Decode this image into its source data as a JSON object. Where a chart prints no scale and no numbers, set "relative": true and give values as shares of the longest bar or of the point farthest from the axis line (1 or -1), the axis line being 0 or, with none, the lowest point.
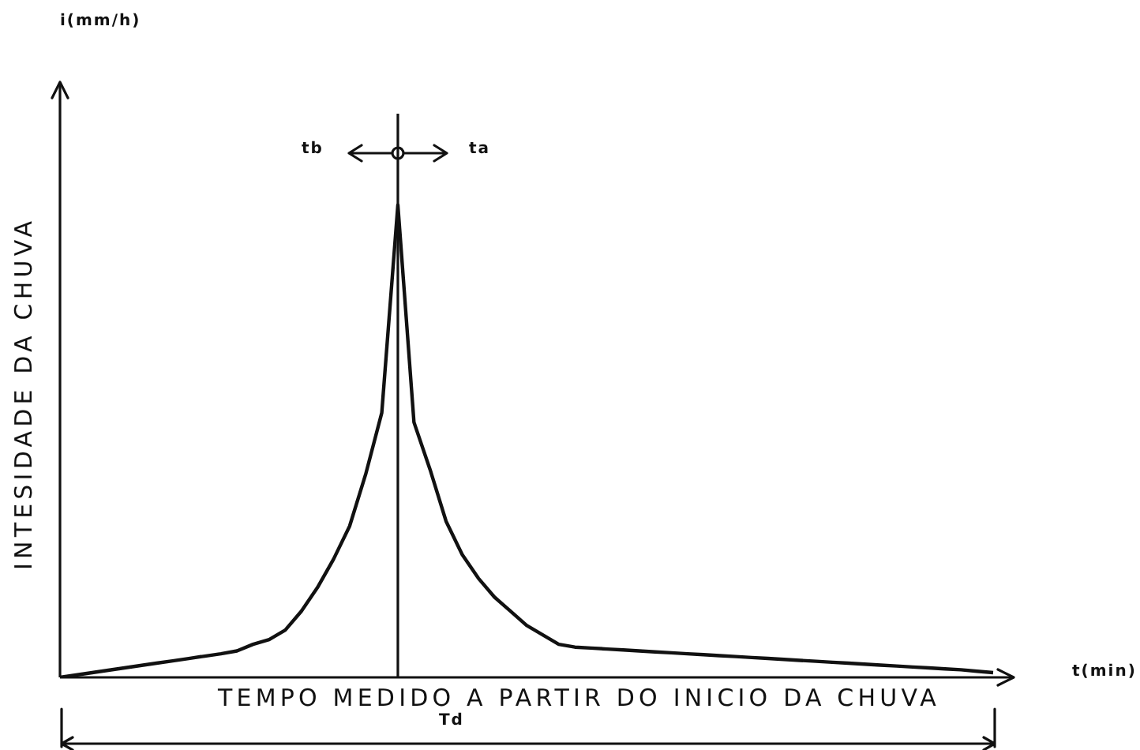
{
  "chart_data": {
    "type": "line",
    "relative": true,
    "xlabel": "TEMPO MEDIDO A PARTIR DO INICIO DA CHUVA",
    "ylabel": "INTESIDADE DA CHUVA",
    "annotations": [
      "i(mm/h)",
      "t(min)",
      "tb",
      "ta",
      "Td"
    ],
    "categories": [
      null,
      null,
      null,
      null,
      null,
      null,
      null,
      null,
      null,
      null,
      null,
      null,
      null,
      null,
      null,
      null,
      null,
      null,
      null,
      null,
      null,
      null,
      null,
      null,
      null,
      null,
      null,
      null,
      null,
      null,
      null,
      null,
      null,
      null,
      null,
      null,
      null,
      null,
      null,
      null,
      null,
      null,
      null,
      null,
      null,
      null,
      null,
      null,
      null,
      null,
      null,
      null,
      null,
      null,
      null,
      null,
      null,
      null,
      null
    ],
    "series": [
      {
        "color": "#111111",
        "values": [
          0,
          0.005,
          0.01,
          0.015,
          0.02,
          0.025,
          0.03,
          0.035,
          0.04,
          0.045,
          0.05,
          0.056,
          0.07,
          0.08,
          0.1,
          0.14,
          0.19,
          0.25,
          0.32,
          0.43,
          0.56,
          1,
          0.54,
          0.44,
          0.33,
          0.26,
          0.21,
          0.17,
          0.14,
          0.11,
          0.09,
          0.07,
          0.064,
          0.062,
          0.06,
          0.058,
          0.056,
          0.054,
          0.052,
          0.05,
          0.048,
          0.046,
          0.044,
          0.042,
          0.04,
          0.038,
          0.036,
          0.034,
          0.032,
          0.03,
          0.028,
          0.026,
          0.024,
          0.022,
          0.02,
          0.018,
          0.016,
          0.013,
          0.01
        ]
      }
    ],
    "marker": "none",
    "line_style": "solid",
    "legend": false
  }
}
